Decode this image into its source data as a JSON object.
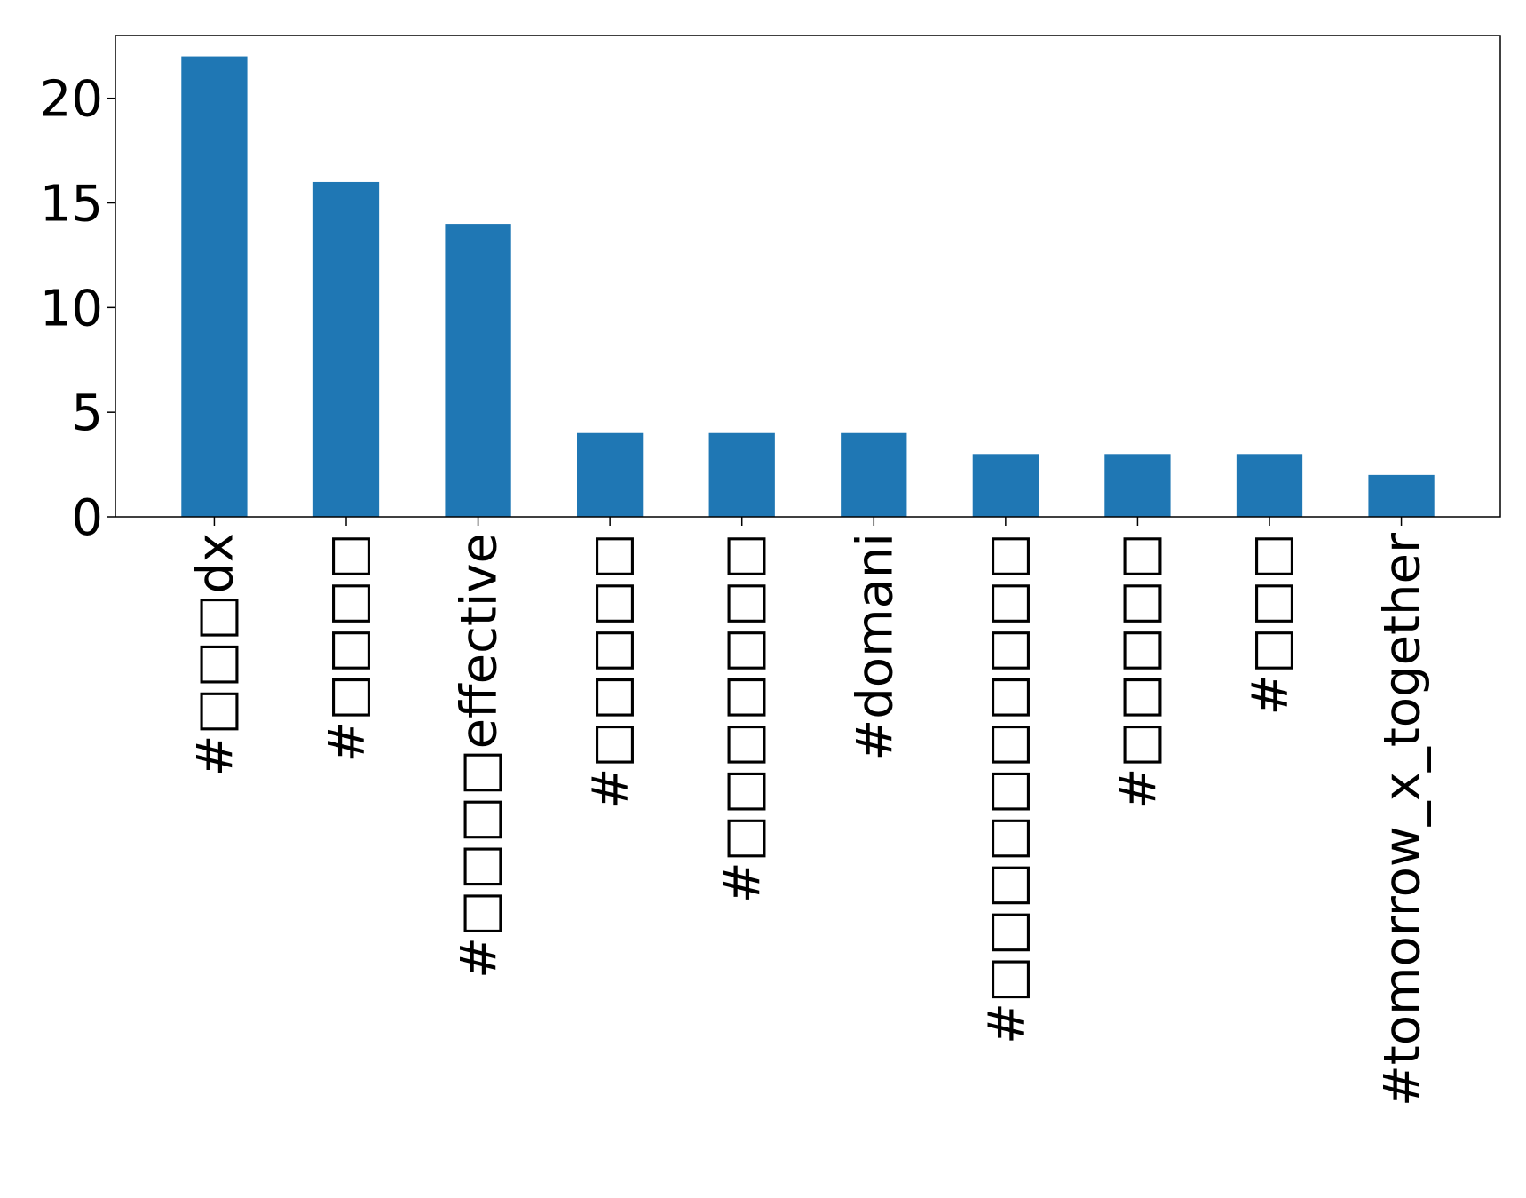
{
  "chart_data": {
    "type": "bar",
    "categories": [
      "#□□□dx",
      "#□□□□",
      "#□□□□effective",
      "#□□□□□",
      "#□□□□□□□",
      "#domani",
      "#□□□□□□□□□□",
      "#□□□□□",
      "#□□□",
      "#tomorrow_x_together"
    ],
    "values": [
      22,
      16,
      14,
      4,
      4,
      4,
      3,
      3,
      3,
      2
    ],
    "title": "",
    "xlabel": "",
    "ylabel": "",
    "ylim": [
      0,
      23
    ],
    "yticks": [
      "0",
      "5",
      "10",
      "15",
      "20"
    ],
    "grid": false,
    "legend": "none",
    "bar_color": "#1f77b4"
  }
}
